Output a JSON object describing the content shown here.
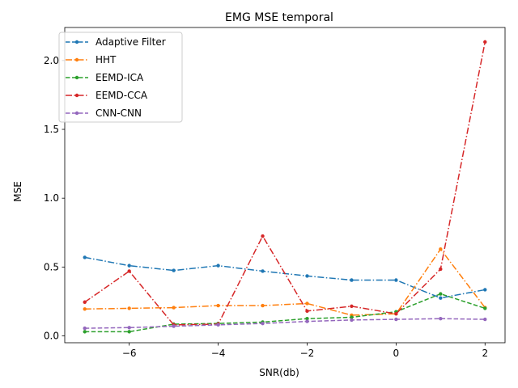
{
  "chart_data": {
    "type": "line",
    "title": "EMG MSE temporal",
    "xlabel": "SNR(db)",
    "ylabel": "MSE",
    "x": [
      -7,
      -6,
      -5,
      -4,
      -3,
      -2,
      -1,
      0,
      1,
      2
    ],
    "xlim": [
      -7.45,
      2.45
    ],
    "ylim": [
      -0.05,
      2.24
    ],
    "xticks": [
      -6,
      -4,
      -2,
      0,
      2
    ],
    "xtick_labels": [
      "−6",
      "−4",
      "−2",
      "0",
      "2"
    ],
    "yticks": [
      0.0,
      0.5,
      1.0,
      1.5,
      2.0
    ],
    "ytick_labels": [
      "0.0",
      "0.5",
      "1.0",
      "1.5",
      "2.0"
    ],
    "grid": false,
    "legend_position": "top-left",
    "series": [
      {
        "name": "Adaptive Filter",
        "color": "#1f77b4",
        "dash": "dashdot",
        "legend_dash": "dashed",
        "values": [
          0.57,
          0.51,
          0.475,
          0.51,
          0.47,
          0.435,
          0.405,
          0.405,
          0.275,
          0.335
        ]
      },
      {
        "name": "HHT",
        "color": "#ff7f0e",
        "dash": "dashdot",
        "legend_dash": "dashdot",
        "values": [
          0.195,
          0.2,
          0.205,
          0.22,
          0.22,
          0.235,
          0.15,
          0.16,
          0.63,
          0.205
        ]
      },
      {
        "name": "EEMD-ICA",
        "color": "#2ca02c",
        "dash": "dashed",
        "legend_dash": "dashed",
        "values": [
          0.03,
          0.03,
          0.085,
          0.09,
          0.1,
          0.125,
          0.135,
          0.175,
          0.305,
          0.2
        ]
      },
      {
        "name": "EEMD-CCA",
        "color": "#d62728",
        "dash": "dashdot",
        "legend_dash": "dashdot",
        "values": [
          0.245,
          0.47,
          0.08,
          0.085,
          0.725,
          0.18,
          0.215,
          0.16,
          0.485,
          2.135
        ]
      },
      {
        "name": "CNN-CNN",
        "color": "#9467bd",
        "dash": "dashed",
        "legend_dash": "dashed",
        "values": [
          0.055,
          0.06,
          0.07,
          0.08,
          0.09,
          0.105,
          0.115,
          0.12,
          0.125,
          0.12
        ]
      }
    ]
  }
}
